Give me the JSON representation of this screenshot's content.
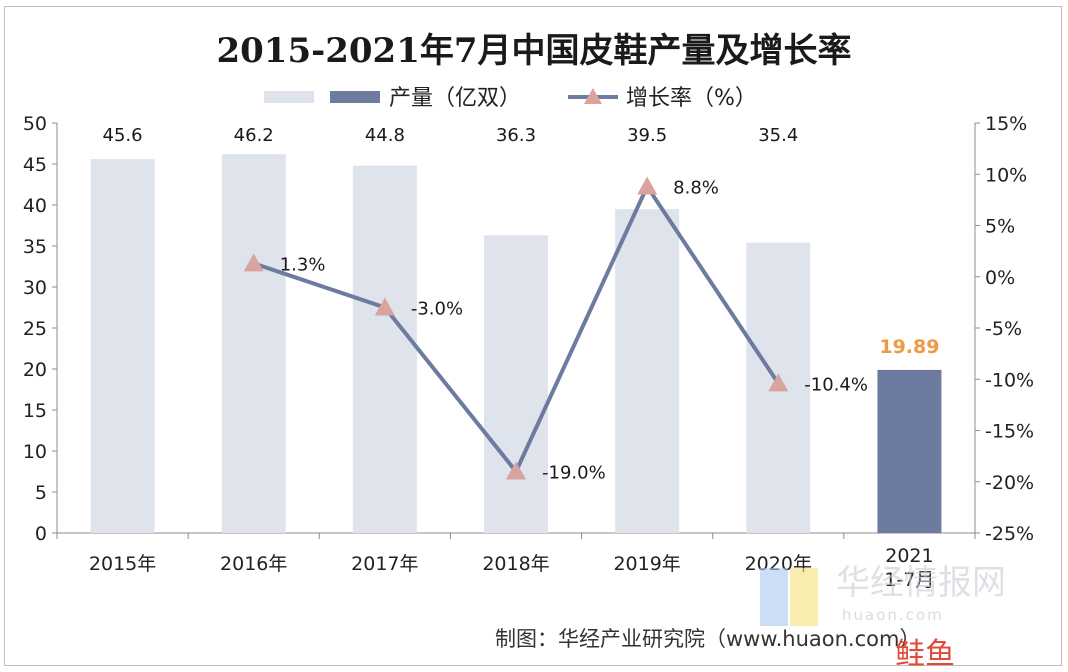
{
  "chart_data": {
    "type": "bar",
    "title": "2015-2021年7月中国皮鞋产量及增长率",
    "categories": [
      "2015年",
      "2016年",
      "2017年",
      "2018年",
      "2019年",
      "2020年",
      "2021\n1-7月"
    ],
    "series": [
      {
        "name": "产量（亿双）",
        "type": "bar",
        "axis": "left",
        "values": [
          45.6,
          46.2,
          44.8,
          36.3,
          39.5,
          35.4,
          19.89
        ],
        "labels": [
          "45.6",
          "46.2",
          "44.8",
          "36.3",
          "39.5",
          "35.4",
          "19.89"
        ],
        "color": "#dfe3ec",
        "highlight_index": 6,
        "highlight_color": "#6d7ba0",
        "highlight_label_color": "#ed9a43"
      },
      {
        "name": "增长率（%）",
        "type": "line",
        "axis": "right",
        "values": [
          null,
          1.3,
          -3.0,
          -19.0,
          8.8,
          -10.4,
          null
        ],
        "labels": [
          "",
          "1.3%",
          "-3.0%",
          "-19.0%",
          "8.8%",
          "-10.4%",
          ""
        ],
        "color": "#6d7ba0",
        "marker": "triangle",
        "marker_color": "#d9a3a0"
      }
    ],
    "y_left": {
      "ylim": [
        0,
        50
      ],
      "ticks": [
        "0",
        "5",
        "10",
        "15",
        "20",
        "25",
        "30",
        "35",
        "40",
        "45",
        "50"
      ]
    },
    "y_right": {
      "ylim": [
        -25,
        15
      ],
      "ticks": [
        "-25%",
        "-20%",
        "-15%",
        "-10%",
        "-5%",
        "0%",
        "5%",
        "10%",
        "15%"
      ]
    },
    "grid": false,
    "legend": "top-center"
  },
  "credit": "制图：华经产业研究院（www.huaon.com）",
  "watermark": {
    "brand": "华经情报网",
    "domain": "huaon.com",
    "corner": "鲑鱼"
  }
}
